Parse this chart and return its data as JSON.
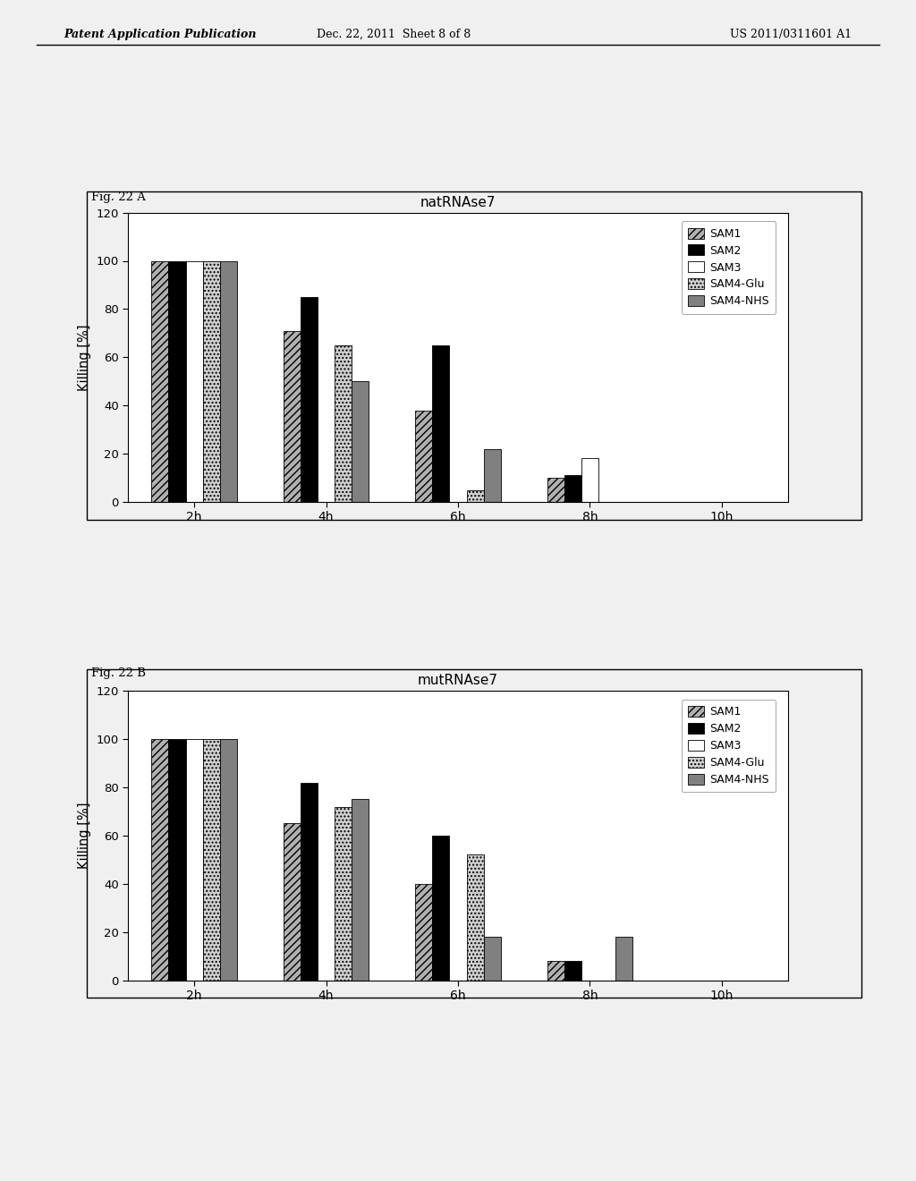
{
  "header_left": "Patent Application Publication",
  "header_center": "Dec. 22, 2011  Sheet 8 of 8",
  "header_right": "US 2011/0311601 A1",
  "fig_a_label": "Fig. 22 A",
  "fig_b_label": "Fig. 22 B",
  "chart_a": {
    "title": "natRNAse7",
    "ylabel": "Killing [%]",
    "ylim": [
      0,
      120
    ],
    "yticks": [
      0,
      20,
      40,
      60,
      80,
      100,
      120
    ],
    "categories": [
      "2h",
      "4h",
      "6h",
      "8h",
      "10h"
    ],
    "series": {
      "SAM1": [
        100,
        71,
        38,
        10,
        0
      ],
      "SAM2": [
        100,
        85,
        65,
        11,
        0
      ],
      "SAM3": [
        100,
        0,
        0,
        18,
        0
      ],
      "SAM4-Glu": [
        100,
        65,
        5,
        0,
        0
      ],
      "SAM4-NHS": [
        100,
        50,
        22,
        0,
        0
      ]
    }
  },
  "chart_b": {
    "title": "mutRNAse7",
    "ylabel": "Killing [%]",
    "ylim": [
      0,
      120
    ],
    "yticks": [
      0,
      20,
      40,
      60,
      80,
      100,
      120
    ],
    "categories": [
      "2h",
      "4h",
      "6h",
      "8h",
      "10h"
    ],
    "series": {
      "SAM1": [
        100,
        65,
        40,
        8,
        0
      ],
      "SAM2": [
        100,
        82,
        60,
        8,
        0
      ],
      "SAM3": [
        100,
        0,
        0,
        0,
        0
      ],
      "SAM4-Glu": [
        100,
        72,
        52,
        0,
        0
      ],
      "SAM4-NHS": [
        100,
        75,
        18,
        18,
        0
      ]
    }
  },
  "series_names": [
    "SAM1",
    "SAM2",
    "SAM3",
    "SAM4-Glu",
    "SAM4-NHS"
  ],
  "bar_width": 0.13,
  "page_bg": "#e8e8e8",
  "plot_bg": "#ffffff"
}
